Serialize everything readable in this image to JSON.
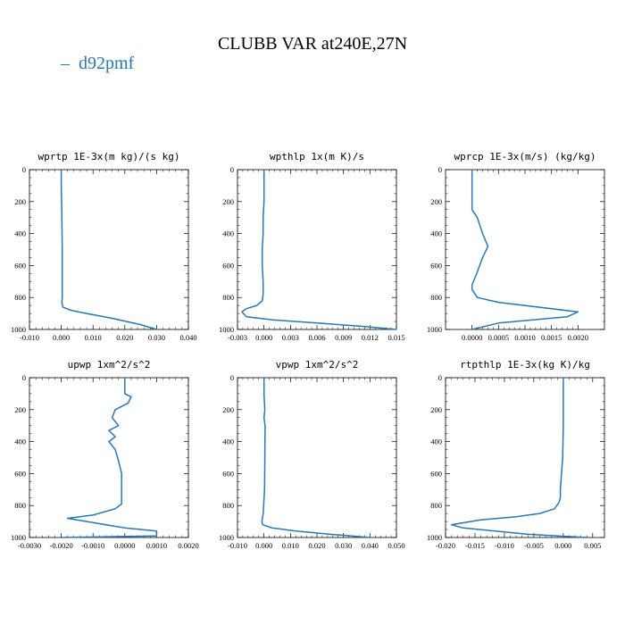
{
  "figure": {
    "title": "CLUBB VAR at240E,27N",
    "legend": [
      {
        "label": "d92pmf",
        "color": "#2a77b4"
      }
    ]
  },
  "chart_data": [
    {
      "type": "line",
      "title": "wprtp  1E-3x(m kg)/(s kg)",
      "xlim": [
        -0.01,
        0.04
      ],
      "ylim": [
        1000,
        0
      ],
      "xticks": [
        "-0.010",
        "0.000",
        "0.010",
        "0.020",
        "0.030",
        "0.040"
      ],
      "yticks": [
        "0",
        "200",
        "400",
        "600",
        "800",
        "1000"
      ],
      "series": [
        {
          "name": "d92pmf",
          "x": [
            0.0,
            0.0,
            0.0002,
            0.0003,
            0.0003,
            0.0003,
            0.0002,
            0.0005,
            0.003,
            0.008,
            0.016,
            0.025,
            0.03
          ],
          "y": [
            0,
            100,
            300,
            500,
            700,
            800,
            830,
            860,
            880,
            900,
            930,
            970,
            1000
          ]
        }
      ]
    },
    {
      "type": "line",
      "title": "wpthlp  1x(m K)/s",
      "xlim": [
        -0.003,
        0.015
      ],
      "ylim": [
        1000,
        0
      ],
      "xticks": [
        "-0.003",
        "0.000",
        "0.003",
        "0.006",
        "0.009",
        "0.012",
        "0.015"
      ],
      "yticks": [
        "0",
        "200",
        "400",
        "600",
        "800",
        "1000"
      ],
      "series": [
        {
          "name": "d92pmf",
          "x": [
            0.0,
            0.0,
            0.0,
            -0.0001,
            -0.0001,
            -0.0002,
            -0.0002,
            -0.0001,
            -0.0001,
            -0.0002,
            -0.0008,
            -0.002,
            -0.0025,
            -0.002,
            0.001,
            0.006,
            0.011,
            0.015
          ],
          "y": [
            0,
            100,
            200,
            300,
            400,
            500,
            600,
            700,
            780,
            820,
            850,
            870,
            890,
            920,
            940,
            960,
            980,
            1000
          ]
        }
      ]
    },
    {
      "type": "line",
      "title": "wprcp  1E-3x(m/s) (kg/kg)",
      "xlim": [
        -0.0005,
        0.0025
      ],
      "ylim": [
        1000,
        0
      ],
      "xticks": [
        "0.0000",
        "0.0005",
        "0.0010",
        "0.0015",
        "0.0020"
      ],
      "yticks": [
        "0",
        "200",
        "400",
        "600",
        "800",
        "1000"
      ],
      "series": [
        {
          "name": "d92pmf",
          "x": [
            0.0,
            0.0,
            0.0,
            0.0,
            0.0001,
            0.0002,
            0.0003,
            0.0002,
            0.0001,
            0.0,
            0.0,
            0.0001,
            0.0005,
            0.002,
            0.0018,
            0.0005,
            0.0
          ],
          "y": [
            0,
            100,
            200,
            250,
            300,
            400,
            480,
            550,
            640,
            720,
            750,
            800,
            830,
            890,
            920,
            960,
            1000
          ]
        }
      ]
    },
    {
      "type": "line",
      "title": "upwp  1xm^2/s^2",
      "xlim": [
        -0.003,
        0.002
      ],
      "ylim": [
        1000,
        0
      ],
      "xticks": [
        "-0.0030",
        "-0.0020",
        "-0.0010",
        "0.0000",
        "0.0010",
        "0.0020"
      ],
      "yticks": [
        "0",
        "200",
        "400",
        "600",
        "800",
        "1000"
      ],
      "series": [
        {
          "name": "d92pmf",
          "x": [
            0.0,
            0.0,
            0.0002,
            0.0001,
            -0.0003,
            -0.0004,
            -0.0002,
            -0.0005,
            -0.0003,
            -0.0005,
            -0.0003,
            -0.0002,
            -0.0001,
            -0.0001,
            -0.0001,
            -0.0003,
            -0.001,
            -0.0018,
            -0.0012,
            0.0,
            0.001,
            0.001,
            -0.002
          ],
          "y": [
            0,
            100,
            120,
            160,
            200,
            250,
            300,
            330,
            370,
            400,
            450,
            520,
            600,
            700,
            790,
            820,
            860,
            880,
            900,
            940,
            960,
            990,
            1000
          ]
        }
      ]
    },
    {
      "type": "line",
      "title": "vpwp  1xm^2/s^2",
      "xlim": [
        -0.01,
        0.05
      ],
      "ylim": [
        1000,
        0
      ],
      "xticks": [
        "-0.010",
        "0.000",
        "0.010",
        "0.020",
        "0.030",
        "0.040",
        "0.050"
      ],
      "yticks": [
        "0",
        "200",
        "400",
        "600",
        "800",
        "1000"
      ],
      "series": [
        {
          "name": "d92pmf",
          "x": [
            0.0,
            0.0,
            0.0003,
            0.0,
            0.0004,
            0.0003,
            0.0002,
            -0.0003,
            -0.0008,
            -0.0005,
            0.003,
            0.012,
            0.025,
            0.04
          ],
          "y": [
            0,
            100,
            200,
            250,
            300,
            500,
            700,
            850,
            900,
            920,
            940,
            960,
            980,
            1000
          ]
        }
      ]
    },
    {
      "type": "line",
      "title": "rtpthlp  1E-3x(kg K)/kg",
      "xlim": [
        -0.02,
        0.007
      ],
      "ylim": [
        1000,
        0
      ],
      "xticks": [
        "-0.020",
        "-0.015",
        "-0.010",
        "-0.005",
        "0.000",
        "0.005"
      ],
      "yticks": [
        "0",
        "200",
        "400",
        "600",
        "800",
        "1000"
      ],
      "series": [
        {
          "name": "d92pmf",
          "x": [
            0.0,
            0.0,
            0.0,
            -0.0001,
            -0.0003,
            -0.0005,
            -0.0005,
            -0.0007,
            -0.0015,
            -0.004,
            -0.008,
            -0.014,
            -0.019,
            -0.017,
            -0.006,
            0.004
          ],
          "y": [
            0,
            100,
            300,
            500,
            600,
            700,
            750,
            780,
            820,
            850,
            870,
            890,
            920,
            940,
            980,
            1000
          ]
        }
      ]
    }
  ]
}
